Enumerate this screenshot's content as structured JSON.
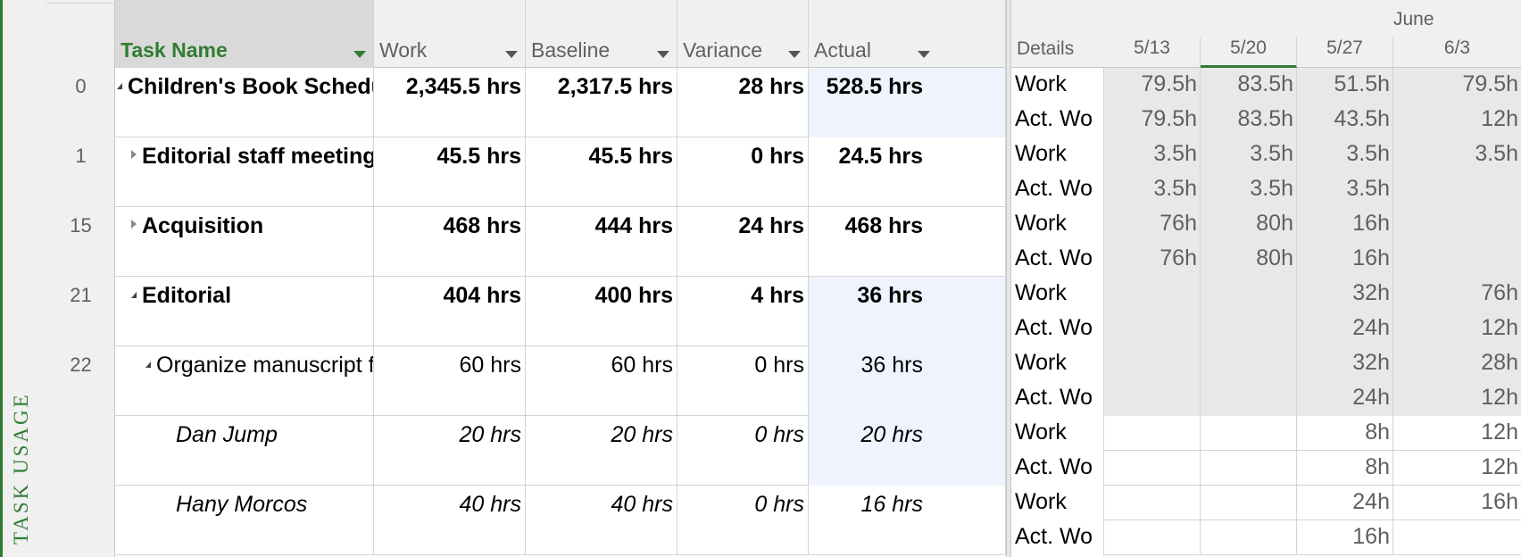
{
  "view": {
    "label": "TASK USAGE"
  },
  "columns": {
    "task_name": "Task Name",
    "work": "Work",
    "baseline": "Baseline",
    "variance": "Variance",
    "actual": "Actual"
  },
  "timescale": {
    "month": "June",
    "details": "Details",
    "weeks": [
      "5/13",
      "5/20",
      "5/27",
      "6/3"
    ]
  },
  "rows": [
    {
      "id": "0",
      "name": "Children's Book Schedu",
      "work": "2,345.5 hrs",
      "baseline": "2,317.5 hrs",
      "variance": "28 hrs",
      "actual": "528.5 hrs",
      "grid": [
        {
          "label": "Work",
          "values": [
            "79.5h",
            "83.5h",
            "51.5h",
            "79.5h"
          ]
        },
        {
          "label": "Act. Wo",
          "values": [
            "79.5h",
            "83.5h",
            "43.5h",
            "12h"
          ]
        }
      ]
    },
    {
      "id": "1",
      "name": "Editorial staff meeting",
      "work": "45.5 hrs",
      "baseline": "45.5 hrs",
      "variance": "0 hrs",
      "actual": "24.5 hrs",
      "grid": [
        {
          "label": "Work",
          "values": [
            "3.5h",
            "3.5h",
            "3.5h",
            "3.5h"
          ]
        },
        {
          "label": "Act. Wo",
          "values": [
            "3.5h",
            "3.5h",
            "3.5h",
            ""
          ]
        }
      ]
    },
    {
      "id": "15",
      "name": "Acquisition",
      "work": "468 hrs",
      "baseline": "444 hrs",
      "variance": "24 hrs",
      "actual": "468 hrs",
      "grid": [
        {
          "label": "Work",
          "values": [
            "76h",
            "80h",
            "16h",
            ""
          ]
        },
        {
          "label": "Act. Wo",
          "values": [
            "76h",
            "80h",
            "16h",
            ""
          ]
        }
      ]
    },
    {
      "id": "21",
      "name": "Editorial",
      "work": "404 hrs",
      "baseline": "400 hrs",
      "variance": "4 hrs",
      "actual": "36 hrs",
      "grid": [
        {
          "label": "Work",
          "values": [
            "",
            "",
            "32h",
            "76h"
          ]
        },
        {
          "label": "Act. Wo",
          "values": [
            "",
            "",
            "24h",
            "12h"
          ]
        }
      ]
    },
    {
      "id": "22",
      "name": "Organize manuscript fo",
      "work": "60 hrs",
      "baseline": "60 hrs",
      "variance": "0 hrs",
      "actual": "36 hrs",
      "grid": [
        {
          "label": "Work",
          "values": [
            "",
            "",
            "32h",
            "28h"
          ]
        },
        {
          "label": "Act. Wo",
          "values": [
            "",
            "",
            "24h",
            "12h"
          ]
        }
      ]
    },
    {
      "id": "",
      "name": "Dan Jump",
      "work": "20 hrs",
      "baseline": "20 hrs",
      "variance": "0 hrs",
      "actual": "20 hrs",
      "grid": [
        {
          "label": "Work",
          "values": [
            "",
            "",
            "8h",
            "12h"
          ]
        },
        {
          "label": "Act. Wo",
          "values": [
            "",
            "",
            "8h",
            "12h"
          ]
        }
      ]
    },
    {
      "id": "",
      "name": "Hany Morcos",
      "work": "40 hrs",
      "baseline": "40 hrs",
      "variance": "0 hrs",
      "actual": "16 hrs",
      "grid": [
        {
          "label": "Work",
          "values": [
            "",
            "",
            "24h",
            "16h"
          ]
        },
        {
          "label": "Act. Wo",
          "values": [
            "",
            "",
            "16h",
            ""
          ]
        }
      ]
    }
  ]
}
